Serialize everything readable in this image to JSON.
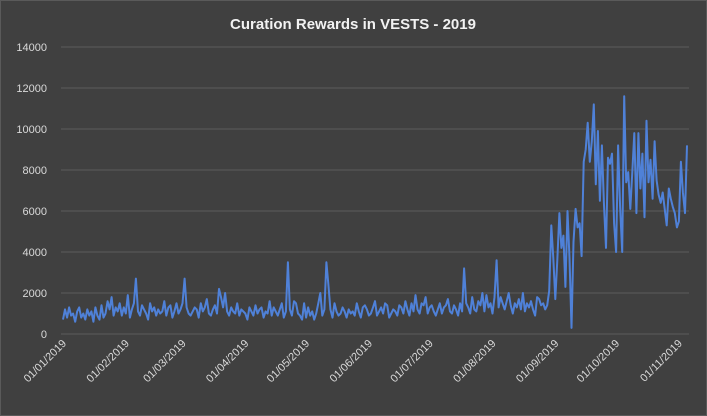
{
  "chart_data": {
    "type": "line",
    "title": "Curation Rewards in VESTS - 2019",
    "xlabel": "",
    "ylabel": "",
    "ylim": [
      0,
      14000
    ],
    "yticks": [
      0,
      2000,
      4000,
      6000,
      8000,
      10000,
      12000,
      14000
    ],
    "x_tick_labels": [
      "01/01/2019",
      "01/02/2019",
      "01/03/2019",
      "01/04/2019",
      "01/05/2019",
      "01/06/2019",
      "01/07/2019",
      "01/08/2019",
      "01/09/2019",
      "01/10/2019",
      "01/11/2019"
    ],
    "grid": true,
    "legend": "none",
    "color": "#4f81d8",
    "series": [
      {
        "x_start": "2019-01-01",
        "values": [
          700,
          1200,
          800,
          1300,
          900,
          1000,
          600,
          1100,
          1300,
          800,
          1000,
          700,
          1200,
          900,
          1100,
          600,
          1300,
          900,
          700,
          1400,
          800,
          1000,
          1600,
          1200,
          1800,
          900,
          1300,
          1100,
          1500,
          900,
          1300,
          1000,
          1900,
          800,
          1200,
          1500,
          2700,
          1100,
          900,
          1400,
          1200,
          1000,
          700,
          1500,
          1100,
          1300,
          900,
          1200,
          1000,
          1100,
          1600,
          900,
          1300,
          1400,
          800,
          1100,
          1500,
          1000,
          1200,
          1500,
          2700,
          1300,
          1000,
          900,
          1100,
          1300,
          1200,
          800,
          1500,
          1100,
          1300,
          1700,
          1000,
          900,
          1200,
          1400,
          1000,
          2200,
          1800,
          1300,
          2000,
          1100,
          900,
          1300,
          1100,
          1000,
          1500,
          900,
          1200,
          1100,
          1000,
          700,
          1300,
          1100,
          900,
          1400,
          1000,
          1200,
          1300,
          800,
          1100,
          1000,
          1600,
          900,
          1300,
          1100,
          900,
          1200,
          1500,
          800,
          1100,
          3500,
          1200,
          900,
          1600,
          1500,
          1000,
          900,
          700,
          1500,
          800,
          1300,
          900,
          1100,
          700,
          1000,
          1500,
          2000,
          900,
          1200,
          3500,
          2400,
          1200,
          800,
          1500,
          1100,
          900,
          1000,
          1300,
          1100,
          800,
          1200,
          1000,
          1100,
          900,
          1500,
          1100,
          800,
          1300,
          1400,
          1200,
          900,
          1000,
          1300,
          1600,
          900,
          1100,
          1300,
          1000,
          1500,
          1400,
          800,
          1000,
          1200,
          1100,
          900,
          1400,
          1300,
          1000,
          1600,
          1200,
          900,
          1500,
          1100,
          1900,
          1200,
          1000,
          1500,
          1400,
          1800,
          1000,
          1300,
          1400,
          1100,
          900,
          1200,
          1500,
          1000,
          1300,
          1400,
          1700,
          1100,
          1000,
          1400,
          1200,
          900,
          1500,
          1100,
          3200,
          1500,
          1300,
          1000,
          1800,
          1200,
          1100,
          1600,
          1400,
          2000,
          1100,
          1900,
          1300,
          1500,
          1000,
          1800,
          3600,
          1300,
          1800,
          1500,
          1200,
          1600,
          2000,
          1400,
          1000,
          1500,
          1300,
          1700,
          1200,
          2000,
          1100,
          1500,
          1300,
          1600,
          1200,
          900,
          1800,
          1700,
          1400,
          1500,
          1200,
          1400,
          2100,
          5300,
          3700,
          1700,
          3600,
          5900,
          4200,
          4800,
          2300,
          6000,
          3700,
          300,
          4500,
          6100,
          5200,
          5400,
          3800,
          8400,
          9000,
          10300,
          8400,
          9400,
          11200,
          7300,
          9900,
          6500,
          9200,
          6400,
          4200,
          8600,
          8300,
          8800,
          5400,
          4000,
          9200,
          6200,
          4000,
          11600,
          7400,
          7900,
          6100,
          7900,
          9800,
          5900,
          9800,
          7100,
          8800,
          5700,
          10400,
          7400,
          8500,
          6600,
          9400,
          7500,
          6800,
          6400,
          6900,
          6100,
          5300,
          7100,
          6600,
          6200,
          5900,
          5200,
          5500,
          8400,
          6900,
          5900,
          9200
        ]
      }
    ]
  }
}
